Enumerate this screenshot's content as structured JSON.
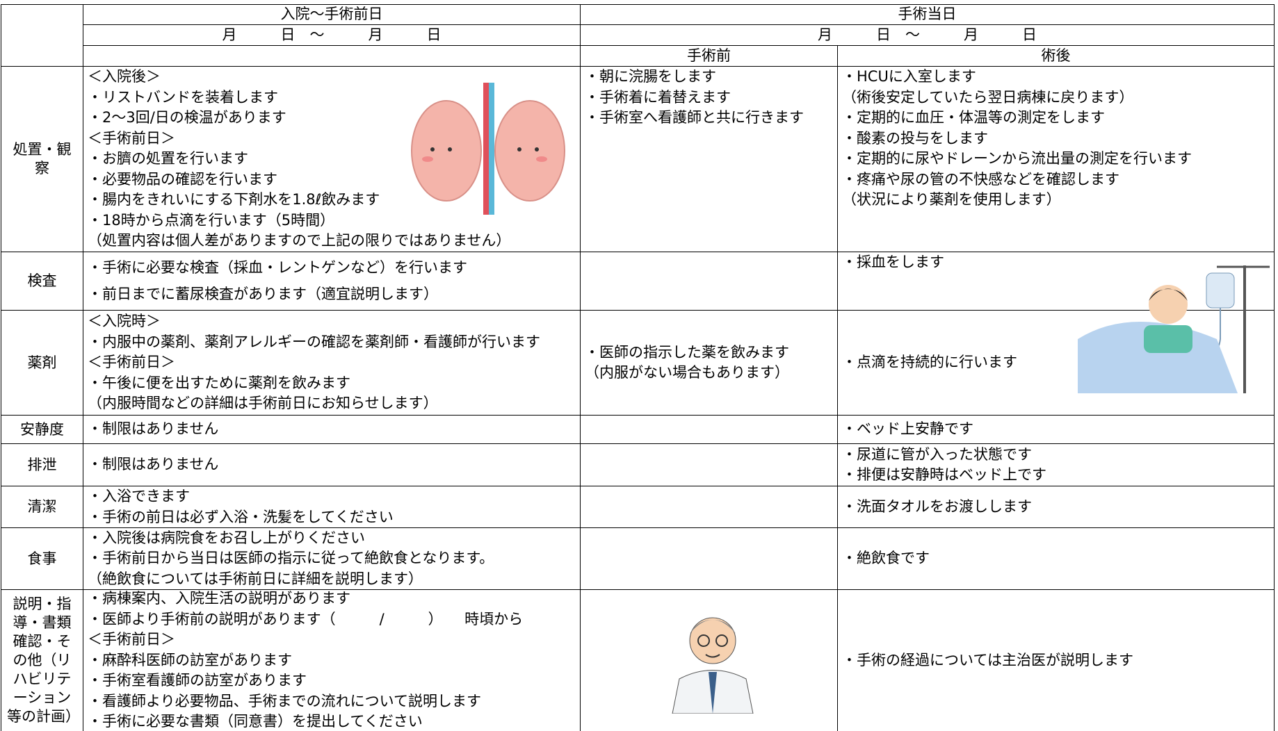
{
  "header": {
    "period1": "入院～手術前日",
    "date1": "月　　　日　～　　　月　　　日",
    "period2": "手術当日",
    "date2": "月　　　日　～　　　月　　　日",
    "sub_before": "手術前",
    "sub_after": "術後"
  },
  "rows": [
    {
      "label": "処置・観察",
      "pre": [
        "＜入院後＞",
        "・リストバンドを装着します",
        "・2～3回/日の検温があります",
        "＜手術前日＞",
        "・お臍の処置を行います",
        "・必要物品の確認を行います",
        "・腸内をきれいにする下剤水を1.8ℓ飲みます",
        "・18時から点滴を行います（5時間）",
        "（処置内容は個人差がありますので上記の限りではありません）"
      ],
      "before": [
        "・朝に浣腸をします",
        "・手術着に着替えます",
        "・手術室へ看護師と共に行きます"
      ],
      "after": [
        "・HCUに入室します",
        "（術後安定していたら翌日病棟に戻ります）",
        "・定期的に血圧・体温等の測定をします",
        "・酸素の投与をします",
        "・定期的に尿やドレーンから流出量の測定を行います",
        "・疼痛や尿の管の不快感などを確認します",
        "（状況により薬剤を使用します）"
      ]
    },
    {
      "label": "検査",
      "pre": [
        "・手術に必要な検査（採血・レントゲンなど）を行います",
        "・前日までに蓄尿検査があります（適宜説明します）"
      ],
      "before": [],
      "after": [
        "・採血をします"
      ]
    },
    {
      "label": "薬剤",
      "pre": [
        "＜入院時＞",
        "・内服中の薬剤、薬剤アレルギーの確認を薬剤師・看護師が行います",
        "＜手術前日＞",
        "・午後に便を出すために薬剤を飲みます",
        "（内服時間などの詳細は手術前日にお知らせします）"
      ],
      "before": [
        "・医師の指示した薬を飲みます",
        "（内服がない場合もあります）"
      ],
      "after": [
        "・点滴を持続的に行います"
      ]
    },
    {
      "label": "安静度",
      "pre": [
        "・制限はありません"
      ],
      "before": [],
      "after": [
        "・ベッド上安静です"
      ]
    },
    {
      "label": "排泄",
      "pre": [
        "・制限はありません"
      ],
      "before": [],
      "after": [
        "・尿道に管が入った状態です",
        "・排便は安静時はベッド上です"
      ]
    },
    {
      "label": "清潔",
      "pre": [
        "・入浴できます",
        "・手術の前日は必ず入浴・洗髪をしてください"
      ],
      "before": [],
      "after": [
        "・洗面タオルをお渡しします"
      ]
    },
    {
      "label": "食事",
      "pre": [
        "・入院後は病院食をお召し上がりください",
        "・手術前日から当日は医師の指示に従って絶飲食となります。",
        "（絶飲食については手術前日に詳細を説明します）"
      ],
      "before": [],
      "after": [
        "・絶飲食です"
      ]
    },
    {
      "label": "説明・指導・書類確認・その他（リハビリテーション等の計画）",
      "pre": [
        "・病棟案内、入院生活の説明があります",
        "・医師より手術前の説明があります（　　　/　　　）　　時頃から",
        "＜手術前日＞",
        "・麻酔科医師の訪室があります",
        "・手術室看護師の訪室があります",
        "・看護師より必要物品、手術までの流れについて説明します",
        "・手術に必要な書類（同意書）を提出してください"
      ],
      "before": [],
      "after": [
        "・手術の経過については主治医が説明します"
      ]
    }
  ]
}
